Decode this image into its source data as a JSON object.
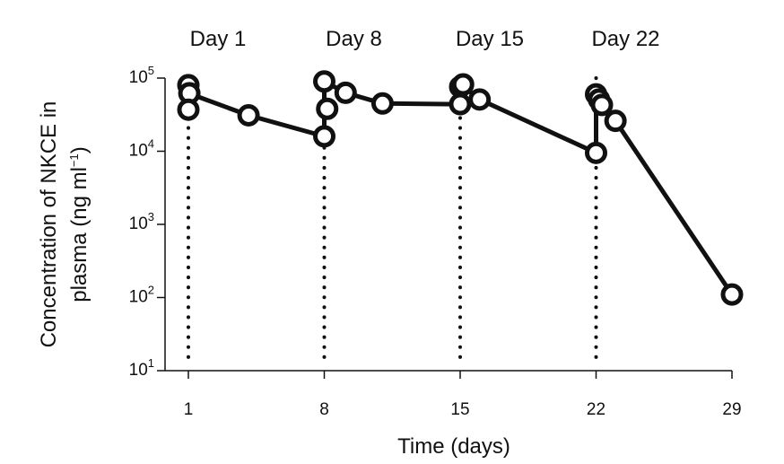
{
  "chart_data": {
    "type": "line",
    "xlabel": "Time (days)",
    "ylabel_line1": "Concentration of NKCE in",
    "ylabel_line2_prefix": "plasma (ng ml",
    "ylabel_line2_sup": "−1",
    "ylabel_line2_suffix": ")",
    "y_scale": "log",
    "xlim": [
      1,
      29
    ],
    "ylim": [
      10,
      100000
    ],
    "x_ticks": [
      {
        "value": 1,
        "label": "1"
      },
      {
        "value": 8,
        "label": "8"
      },
      {
        "value": 15,
        "label": "15"
      },
      {
        "value": 22,
        "label": "22"
      },
      {
        "value": 29,
        "label": "29"
      }
    ],
    "y_ticks": [
      {
        "value": 100000,
        "base": "10",
        "exp": "5"
      },
      {
        "value": 10000,
        "base": "10",
        "exp": "4"
      },
      {
        "value": 1000,
        "base": "10",
        "exp": "3"
      },
      {
        "value": 100,
        "base": "10",
        "exp": "2"
      },
      {
        "value": 10,
        "base": "10",
        "exp": "1"
      }
    ],
    "doses": [
      {
        "day": 1,
        "label": "Day 1"
      },
      {
        "day": 8,
        "label": "Day 8"
      },
      {
        "day": 15,
        "label": "Day 15"
      },
      {
        "day": 22,
        "label": "Day 22"
      }
    ],
    "line": [
      {
        "x": 1.0,
        "y": 62000
      },
      {
        "x": 4.1,
        "y": 31000
      },
      {
        "x": 8.0,
        "y": 16000
      },
      {
        "x": 8.0,
        "y": 90000
      },
      {
        "x": 9.1,
        "y": 63000
      },
      {
        "x": 11.0,
        "y": 45000
      },
      {
        "x": 15.0,
        "y": 44000
      },
      {
        "x": 15.0,
        "y": 82000
      },
      {
        "x": 16.0,
        "y": 51000
      },
      {
        "x": 22.0,
        "y": 9500
      },
      {
        "x": 22.0,
        "y": 60000
      },
      {
        "x": 23.0,
        "y": 26000
      },
      {
        "x": 29.0,
        "y": 110
      }
    ],
    "points": [
      {
        "x": 1.0,
        "y": 80000
      },
      {
        "x": 1.05,
        "y": 62000
      },
      {
        "x": 1.0,
        "y": 37000
      },
      {
        "x": 4.1,
        "y": 31000
      },
      {
        "x": 8.0,
        "y": 90000
      },
      {
        "x": 8.15,
        "y": 38000
      },
      {
        "x": 8.0,
        "y": 16000
      },
      {
        "x": 9.1,
        "y": 63000
      },
      {
        "x": 11.0,
        "y": 45000
      },
      {
        "x": 15.0,
        "y": 76000
      },
      {
        "x": 15.15,
        "y": 82000
      },
      {
        "x": 15.0,
        "y": 44000
      },
      {
        "x": 16.0,
        "y": 51000
      },
      {
        "x": 22.0,
        "y": 60000
      },
      {
        "x": 22.15,
        "y": 51000
      },
      {
        "x": 22.3,
        "y": 43000
      },
      {
        "x": 23.0,
        "y": 26000
      },
      {
        "x": 22.0,
        "y": 9500
      },
      {
        "x": 29.0,
        "y": 110
      }
    ],
    "grid": false,
    "legend": "none"
  }
}
